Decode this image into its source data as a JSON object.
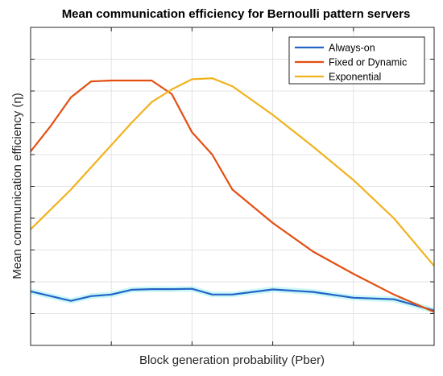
{
  "chart_data": {
    "type": "line",
    "title": "Mean communication efficiency for Bernoulli pattern servers",
    "xlabel": "Block generation probability (Pber)",
    "ylabel": "Mean communication efficiency (η)",
    "x": [
      0,
      0.05,
      0.1,
      0.15,
      0.2,
      0.25,
      0.3,
      0.35,
      0.4,
      0.45,
      0.5,
      0.6,
      0.7,
      0.8,
      0.9,
      1.0
    ],
    "xlim": [
      0,
      1
    ],
    "ylim": [
      0,
      10
    ],
    "grid": true,
    "tick_labels_visible": false,
    "legend_position": "top-right",
    "series": [
      {
        "name": "Always-on",
        "color": "#2463c7",
        "glow": "#9ff0f0",
        "x": [
          0,
          0.1,
          0.15,
          0.2,
          0.25,
          0.3,
          0.35,
          0.4,
          0.45,
          0.5,
          0.6,
          0.7,
          0.8,
          0.9,
          1.0
        ],
        "values": [
          1.7,
          1.4,
          1.55,
          1.6,
          1.75,
          1.77,
          1.77,
          1.78,
          1.6,
          1.6,
          1.76,
          1.68,
          1.5,
          1.45,
          1.1
        ]
      },
      {
        "name": "Fixed or Dynamic",
        "color": "#e34f12",
        "x": [
          0,
          0.05,
          0.1,
          0.15,
          0.2,
          0.25,
          0.3,
          0.35,
          0.4,
          0.45,
          0.5,
          0.6,
          0.7,
          0.8,
          0.9,
          1.0
        ],
        "values": [
          6.1,
          6.9,
          7.8,
          8.3,
          8.33,
          8.33,
          8.33,
          7.9,
          6.7,
          6.0,
          4.9,
          3.85,
          2.95,
          2.25,
          1.6,
          1.05
        ]
      },
      {
        "name": "Exponential",
        "color": "#f1b21e",
        "x": [
          0,
          0.1,
          0.2,
          0.25,
          0.3,
          0.35,
          0.4,
          0.45,
          0.5,
          0.6,
          0.7,
          0.8,
          0.9,
          1.0
        ],
        "values": [
          3.65,
          4.9,
          6.3,
          7.0,
          7.65,
          8.05,
          8.37,
          8.4,
          8.15,
          7.25,
          6.25,
          5.2,
          4.0,
          2.5
        ]
      }
    ]
  }
}
